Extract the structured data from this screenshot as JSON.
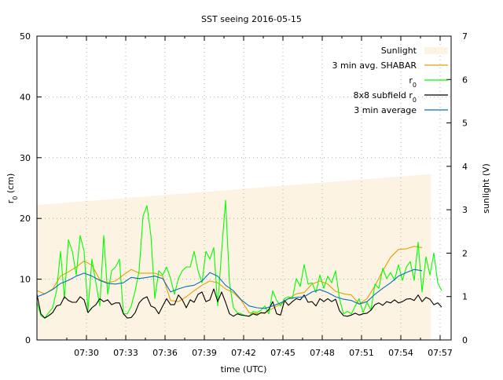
{
  "chart_data": {
    "type": "line",
    "title": "SST seeing 2016-05-15",
    "xlabel": "time (UTC)",
    "ylabel": {
      "main": "r",
      "sub": "0",
      "rest": " (cm)"
    },
    "y2label": "sunlight (V)",
    "x_units": "minutes after 07:00",
    "xlim": [
      26.22,
      57.84
    ],
    "ylim": [
      0,
      50
    ],
    "y2lim": [
      0,
      7
    ],
    "grid": true,
    "legend_position": "top-right",
    "x_ticks": [
      {
        "value": 30,
        "label": "07:30"
      },
      {
        "value": 33,
        "label": "07:33"
      },
      {
        "value": 36,
        "label": "07:36"
      },
      {
        "value": 39,
        "label": "07:39"
      },
      {
        "value": 42,
        "label": "07:42"
      },
      {
        "value": 45,
        "label": "07:45"
      },
      {
        "value": 48,
        "label": "07:48"
      },
      {
        "value": 51,
        "label": "07:51"
      },
      {
        "value": 54,
        "label": "07:54"
      },
      {
        "value": 57,
        "label": "07:57"
      }
    ],
    "y_ticks": [
      0,
      10,
      20,
      30,
      40,
      50
    ],
    "y2_ticks": [
      0,
      1,
      2,
      3,
      4,
      5,
      6,
      7
    ],
    "series": [
      {
        "name": "Sunlight",
        "label": {
          "main": "Sunlight"
        },
        "kind": "area",
        "axis": "y2",
        "color": "#fdf3e3",
        "x": [
          26.22,
          56.3
        ],
        "values": [
          3.11,
          3.82
        ]
      },
      {
        "name": "3 min avg. SHABAR",
        "label": {
          "main": "3 min avg. SHABAR"
        },
        "kind": "line",
        "axis": "y",
        "color": "#e69f00",
        "t0": 26.22,
        "dt": 0.6,
        "values": [
          8.1,
          7.6,
          8.4,
          10.5,
          11.2,
          12.0,
          13.0,
          12.3,
          9.9,
          9.4,
          9.7,
          10.7,
          11.6,
          11.0,
          11.0,
          11.0,
          10.5,
          6.5,
          6.3,
          7.1,
          8.1,
          9.0,
          9.7,
          9.4,
          8.4,
          7.8,
          6.5,
          4.5,
          4.3,
          4.5,
          5.2,
          5.9,
          6.8,
          7.6,
          7.8,
          9.2,
          9.7,
          9.2,
          8.0,
          7.6,
          7.4,
          5.9,
          6.8,
          8.9,
          11.4,
          13.6,
          14.9,
          15.0,
          15.4,
          15.2
        ]
      },
      {
        "name": "r0",
        "label": {
          "main": "r",
          "sub": "0"
        },
        "kind": "line",
        "axis": "y",
        "color": "#00ff00",
        "t0": 26.22,
        "dt": 0.3,
        "values": [
          6.2,
          4.0,
          3.6,
          4.5,
          5.3,
          8.1,
          14.6,
          6.8,
          16.5,
          14.6,
          10.7,
          17.2,
          14.6,
          4.9,
          13.3,
          9.4,
          5.6,
          17.2,
          7.5,
          11.4,
          12.0,
          13.3,
          4.3,
          4.3,
          5.6,
          8.1,
          11.4,
          20.4,
          22.1,
          17.2,
          6.8,
          11.4,
          10.7,
          12.0,
          10.1,
          7.5,
          10.1,
          11.4,
          12.0,
          12.0,
          14.6,
          11.4,
          9.4,
          14.6,
          13.3,
          15.2,
          5.6,
          14.6,
          23.0,
          9.4,
          5.3,
          4.5,
          4.3,
          4.0,
          3.9,
          4.7,
          4.5,
          4.9,
          5.6,
          4.3,
          8.1,
          6.5,
          5.6,
          6.8,
          7.1,
          6.8,
          10.1,
          8.8,
          12.4,
          9.2,
          9.4,
          7.8,
          10.7,
          8.5,
          10.5,
          9.4,
          11.4,
          6.8,
          4.3,
          4.7,
          4.3,
          5.6,
          6.8,
          4.5,
          6.2,
          4.9,
          9.2,
          8.5,
          11.8,
          10.1,
          11.1,
          9.8,
          12.4,
          9.8,
          12.0,
          12.9,
          9.8,
          16.1,
          7.9,
          13.7,
          10.7,
          14.3,
          9.4,
          8.1
        ]
      },
      {
        "name": "8x8 subfield r0",
        "label": {
          "main": "8x8 subfield r",
          "sub": "0"
        },
        "kind": "line",
        "axis": "y",
        "color": "#000000",
        "t0": 26.22,
        "dt": 0.3,
        "values": [
          7.5,
          4.3,
          3.6,
          4.0,
          4.5,
          5.6,
          5.8,
          7.1,
          6.5,
          6.2,
          6.2,
          7.1,
          6.6,
          4.5,
          5.3,
          5.8,
          6.8,
          6.3,
          6.6,
          5.8,
          6.1,
          6.1,
          4.3,
          3.6,
          3.7,
          4.5,
          6.1,
          6.8,
          7.1,
          5.6,
          5.3,
          4.3,
          5.6,
          6.8,
          5.8,
          5.8,
          7.4,
          6.6,
          5.3,
          6.6,
          6.2,
          7.5,
          7.9,
          6.3,
          6.6,
          8.4,
          6.3,
          7.9,
          6.2,
          4.3,
          3.9,
          4.3,
          4.1,
          4.0,
          3.9,
          4.3,
          4.1,
          4.5,
          4.4,
          5.0,
          6.3,
          4.3,
          4.1,
          6.5,
          5.7,
          6.3,
          6.8,
          6.6,
          7.4,
          6.2,
          6.3,
          5.6,
          6.8,
          6.3,
          6.8,
          6.3,
          6.7,
          4.8,
          4.0,
          3.9,
          4.1,
          4.4,
          4.1,
          4.3,
          4.4,
          4.9,
          5.8,
          6.1,
          5.7,
          6.3,
          6.1,
          6.6,
          6.1,
          6.3,
          6.7,
          6.8,
          6.5,
          7.4,
          6.3,
          7.0,
          6.7,
          5.8,
          6.1,
          5.4
        ]
      },
      {
        "name": "3 min average",
        "label": {
          "main": "3 min average"
        },
        "kind": "line",
        "axis": "y",
        "color": "#0072bd",
        "t0": 26.22,
        "dt": 0.6,
        "values": [
          7.1,
          7.6,
          8.3,
          9.3,
          9.8,
          10.5,
          11.0,
          10.5,
          9.8,
          9.3,
          9.2,
          9.4,
          10.3,
          10.1,
          10.3,
          10.5,
          10.1,
          7.9,
          8.4,
          8.8,
          9.0,
          9.7,
          11.1,
          10.5,
          9.0,
          8.1,
          6.6,
          5.6,
          5.3,
          5.2,
          5.6,
          6.1,
          6.8,
          7.0,
          7.1,
          7.9,
          8.3,
          7.8,
          7.1,
          6.7,
          6.5,
          5.9,
          6.3,
          7.5,
          8.5,
          9.4,
          10.5,
          11.1,
          11.6,
          11.4
        ]
      }
    ]
  }
}
